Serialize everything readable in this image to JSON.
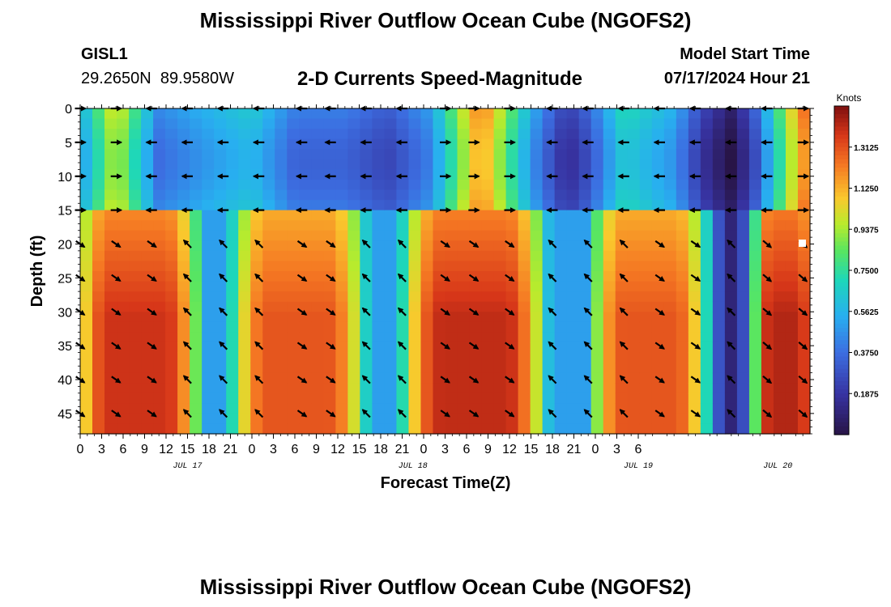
{
  "header": {
    "title": "Mississippi River Outflow Ocean Cube (NGOFS2)",
    "station_id": "GISL1",
    "coordinates": "29.2650N  89.9580W",
    "subtitle": "2-D Currents Speed-Magnitude",
    "model_start_label": "Model Start Time",
    "model_start_value": "07/17/2024 Hour 21"
  },
  "footer": {
    "title": "Mississippi River Outflow Ocean Cube (NGOFS2)"
  },
  "chart_data": {
    "type": "heatmap",
    "title": "2-D Currents Speed-Magnitude",
    "xlabel": "Forecast Time(Z)",
    "ylabel": "Depth (ft)",
    "x_range_hours": [
      0,
      102
    ],
    "y_range_ft": [
      0,
      48
    ],
    "x_tick_labels": [
      "0",
      "3",
      "6",
      "9",
      "12",
      "15",
      "18",
      "21",
      "0",
      "3",
      "6",
      "9",
      "12",
      "15",
      "18",
      "21",
      "0",
      "3",
      "6",
      "9",
      "12",
      "15",
      "18",
      "21",
      "0",
      "3",
      "6"
    ],
    "y_ticks": [
      0,
      5,
      10,
      15,
      20,
      25,
      30,
      35,
      40,
      45
    ],
    "date_labels": [
      {
        "label": "JUL 17",
        "hour": 15
      },
      {
        "label": "JUL 18",
        "hour": 46.5
      },
      {
        "label": "JUL 19",
        "hour": 78
      },
      {
        "label": "JUL 20",
        "hour": 97.5
      }
    ],
    "colorbar": {
      "unit": "Knots",
      "min": 0.0,
      "max": 1.5,
      "tick_labels": [
        "1.3125",
        "1.1250",
        "0.9375",
        "0.7500",
        "0.5625",
        "0.3750",
        "0.1875"
      ]
    },
    "arrow_times_hours": [
      0,
      5,
      10,
      15,
      20,
      25,
      31,
      35,
      40,
      45,
      51,
      55,
      60,
      66,
      71,
      76,
      81,
      86,
      91,
      96,
      101
    ],
    "arrow_depths_ft": [
      0,
      5,
      10,
      15,
      20,
      25,
      30,
      35,
      40,
      45
    ],
    "surface_layer": {
      "depth_range_ft": [
        0,
        15.5
      ],
      "speed_peaks": [
        {
          "hour": 5,
          "speed": 1.05
        },
        {
          "hour": 17,
          "speed": 0.55
        },
        {
          "hour": 24,
          "speed": 0.65
        },
        {
          "hour": 56,
          "speed": 1.25
        },
        {
          "hour": 76,
          "speed": 0.72
        },
        {
          "hour": 101,
          "speed": 1.25
        }
      ],
      "speed_troughs": [
        {
          "hour": 43,
          "speed": 0.32
        },
        {
          "hour": 68,
          "speed": 0.22
        },
        {
          "hour": 91,
          "speed": 0.08
        }
      ]
    },
    "bottom_layer": {
      "depth_range_ft": [
        15.5,
        48
      ],
      "high_speed_blocks": [
        {
          "hours": [
            1,
            15
          ],
          "peak_speed": 1.38
        },
        {
          "hours": [
            23,
            38
          ],
          "peak_speed": 1.3
        },
        {
          "hours": [
            47,
            63
          ],
          "peak_speed": 1.4
        },
        {
          "hours": [
            73,
            86
          ],
          "peak_speed": 1.3
        },
        {
          "hours": [
            95,
            102
          ],
          "peak_speed": 1.42
        }
      ],
      "background_speed": 0.5,
      "minimum_speed": {
        "hour": 91,
        "speed": 0.05
      }
    }
  }
}
